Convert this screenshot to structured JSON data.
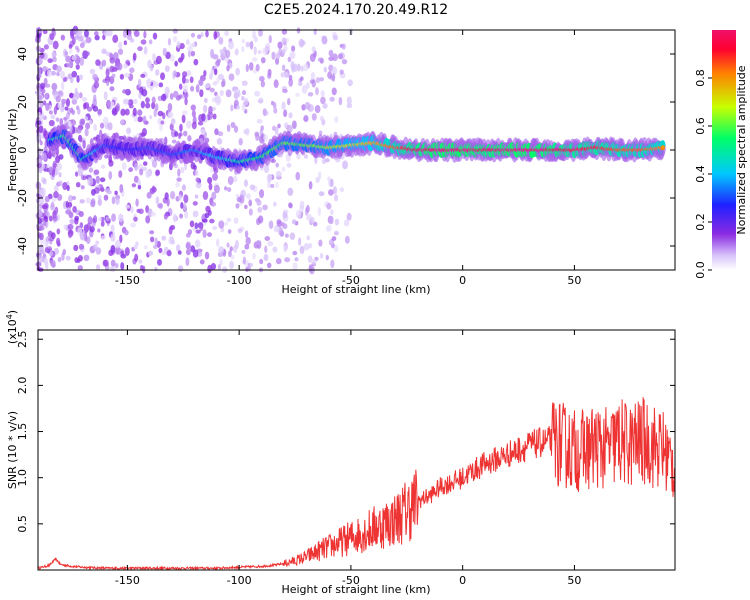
{
  "title": "C2E5.2024.170.20.49.R12",
  "colors": {
    "snr_line": "#ee3333",
    "background_blob": "#a070f0",
    "colormap": [
      "#ffffff",
      "#cfb8f8",
      "#8a2be2",
      "#2020ff",
      "#00c8ff",
      "#00ff66",
      "#c8ff00",
      "#ff8000",
      "#ff0030"
    ]
  },
  "chart_data": [
    {
      "type": "heatmap",
      "name": "spectrogram",
      "xlabel": "Height of straight line (km)",
      "ylabel": "Frequency (Hz)",
      "xlim": [
        -190,
        95
      ],
      "ylim": [
        -50,
        50
      ],
      "xticks": [
        -150,
        -100,
        -50,
        0,
        50
      ],
      "xtick_labels": [
        "-150",
        "-100",
        "-50",
        "0",
        "50"
      ],
      "yticks": [
        -40,
        -20,
        0,
        20,
        40
      ],
      "ytick_labels": [
        "-40",
        "-20",
        "0",
        "20",
        "40"
      ],
      "colorbar": {
        "label": "Normalized spectral amplitude",
        "range": [
          0,
          1
        ],
        "ticks": [
          0.0,
          0.2,
          0.4,
          0.6,
          0.8
        ],
        "tick_labels": [
          "0.0",
          "0.2",
          "0.4",
          "0.6",
          "0.8"
        ]
      },
      "description_points": [
        {
          "x": -185,
          "y": 4,
          "v": 0.45
        },
        {
          "x": -178,
          "y": 6,
          "v": 0.55
        },
        {
          "x": -170,
          "y": -4,
          "v": 0.5
        },
        {
          "x": -160,
          "y": 2,
          "v": 0.3
        },
        {
          "x": -150,
          "y": 0,
          "v": 0.25
        },
        {
          "x": -140,
          "y": 1,
          "v": 0.3
        },
        {
          "x": -130,
          "y": -2,
          "v": 0.3
        },
        {
          "x": -120,
          "y": 0,
          "v": 0.35
        },
        {
          "x": -110,
          "y": -3,
          "v": 0.4
        },
        {
          "x": -100,
          "y": -5,
          "v": 0.5
        },
        {
          "x": -90,
          "y": -3,
          "v": 0.55
        },
        {
          "x": -80,
          "y": 3,
          "v": 0.6
        },
        {
          "x": -70,
          "y": 2,
          "v": 0.6
        },
        {
          "x": -60,
          "y": 1,
          "v": 0.65
        },
        {
          "x": -50,
          "y": 2,
          "v": 0.7
        },
        {
          "x": -40,
          "y": 3,
          "v": 0.75
        },
        {
          "x": -30,
          "y": 1,
          "v": 0.85
        },
        {
          "x": -20,
          "y": 0,
          "v": 0.95
        },
        {
          "x": -10,
          "y": 0,
          "v": 1.0
        },
        {
          "x": 0,
          "y": 0,
          "v": 1.0
        },
        {
          "x": 10,
          "y": 0,
          "v": 0.95
        },
        {
          "x": 20,
          "y": 0,
          "v": 1.0
        },
        {
          "x": 30,
          "y": 0,
          "v": 1.0
        },
        {
          "x": 40,
          "y": 0,
          "v": 0.95
        },
        {
          "x": 50,
          "y": 0,
          "v": 0.9
        },
        {
          "x": 60,
          "y": 1,
          "v": 0.9
        },
        {
          "x": 70,
          "y": 0,
          "v": 0.85
        },
        {
          "x": 80,
          "y": 0,
          "v": 0.85
        },
        {
          "x": 90,
          "y": 1,
          "v": 0.8
        }
      ]
    },
    {
      "type": "line",
      "name": "snr",
      "xlabel": "Height of straight line (km)",
      "ylabel": "SNR (10 * v/v)",
      "y_multiplier_label": "(x10",
      "y_multiplier_exp": "4",
      "y_multiplier_close": ")",
      "xlim": [
        -190,
        95
      ],
      "ylim": [
        0,
        2.6
      ],
      "xticks": [
        -150,
        -100,
        -50,
        0,
        50
      ],
      "xtick_labels": [
        "-150",
        "-100",
        "-50",
        "0",
        "50"
      ],
      "yticks": [
        0.5,
        1.0,
        1.5,
        2.0,
        2.5
      ],
      "ytick_labels": [
        "0.5",
        "1.0",
        "1.5",
        "2.0",
        "2.5"
      ],
      "series": [
        {
          "x": [
            -190,
            -185,
            -182,
            -180,
            -175,
            -170,
            -160,
            -150,
            -140,
            -130,
            -120,
            -110,
            -100,
            -90,
            -85,
            -80,
            -75,
            -70,
            -65,
            -60,
            -55,
            -50,
            -45,
            -40,
            -35,
            -30,
            -25,
            -20,
            -15,
            -10,
            -5,
            0,
            5,
            10,
            15,
            20,
            25,
            30,
            35,
            40,
            45,
            50,
            55,
            60,
            65,
            70,
            75,
            80,
            85,
            90,
            95
          ],
          "y": [
            0.02,
            0.05,
            0.12,
            0.06,
            0.04,
            0.03,
            0.02,
            0.02,
            0.02,
            0.02,
            0.02,
            0.02,
            0.03,
            0.04,
            0.05,
            0.07,
            0.1,
            0.14,
            0.2,
            0.25,
            0.3,
            0.35,
            0.4,
            0.45,
            0.5,
            0.55,
            0.65,
            0.75,
            0.8,
            0.9,
            0.95,
            1.0,
            1.08,
            1.15,
            1.2,
            1.25,
            1.3,
            1.35,
            1.38,
            1.4,
            1.35,
            1.3,
            1.3,
            1.35,
            1.3,
            1.4,
            1.35,
            1.4,
            1.35,
            1.3,
            1.1
          ]
        }
      ]
    }
  ]
}
